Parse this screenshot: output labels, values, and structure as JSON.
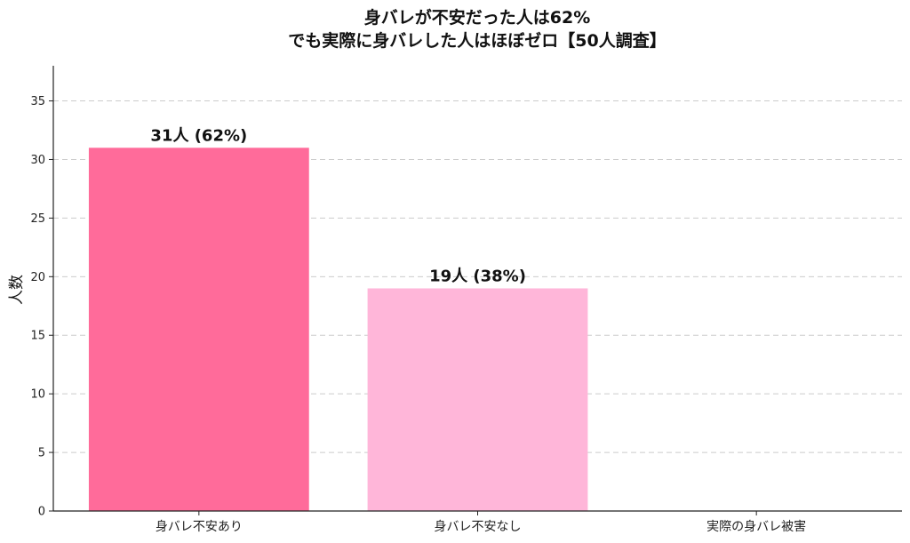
{
  "chart_data": {
    "type": "bar",
    "title_lines": [
      "身バレが不安だった人は62%",
      "でも実際に身バレした人はほぼゼロ【50人調査】"
    ],
    "xlabel": "",
    "ylabel": "人数",
    "categories": [
      "身バレ不安あり",
      "身バレ不安なし",
      "実際の身バレ被害"
    ],
    "values": [
      31,
      19,
      0
    ],
    "data_labels": [
      "31人 (62%)",
      "19人 (38%)",
      ""
    ],
    "colors": [
      "#FF6B9A",
      "#FFB6D9",
      "#FFB6D9"
    ],
    "ylim": [
      0,
      38
    ],
    "yticks": [
      0,
      5,
      10,
      15,
      20,
      25,
      30,
      35
    ],
    "grid": "horizontal-dashed"
  }
}
